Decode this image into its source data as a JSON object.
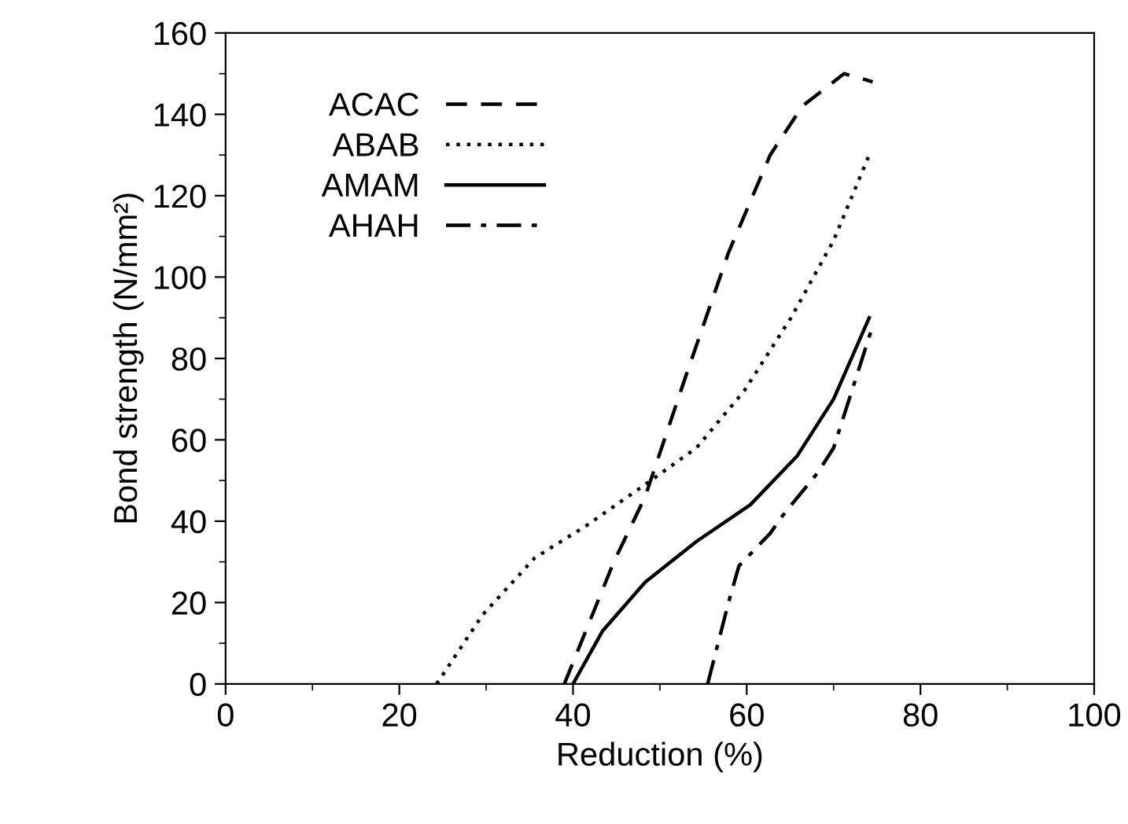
{
  "chart_data": {
    "type": "line",
    "xlabel": "Reduction (%)",
    "ylabel": "Bond strength (N/mm²)",
    "xlim": [
      0,
      100
    ],
    "xticks": [
      0,
      20,
      40,
      60,
      80,
      100
    ],
    "ylim": [
      0,
      160
    ],
    "yticks": [
      0,
      20,
      40,
      60,
      80,
      100,
      120,
      140,
      160
    ],
    "grid": false,
    "legend": "top left",
    "marker": "none",
    "series": [
      {
        "name": "ACAC",
        "color": "#000000",
        "line_style": "dashed",
        "x": [
          39,
          44.7,
          48.3,
          53.2,
          57.9,
          62.7,
          66.4,
          71.2,
          74.5
        ],
        "values": [
          0,
          30,
          46,
          77,
          106,
          130,
          142,
          150,
          148
        ]
      },
      {
        "name": "ABAB",
        "color": "#000000",
        "line_style": "dotted",
        "x": [
          24.3,
          29.6,
          35.6,
          41.6,
          48.3,
          54.2,
          59.7,
          65.1,
          70,
          74.1
        ],
        "values": [
          0,
          17,
          31,
          39,
          49,
          58,
          72,
          90,
          109,
          130
        ]
      },
      {
        "name": "AMAM",
        "color": "#000000",
        "line_style": "solid",
        "x": [
          40,
          43.4,
          48.3,
          54.2,
          60.4,
          65.8,
          70,
          74.1
        ],
        "values": [
          0,
          13,
          25,
          35,
          44,
          56,
          70,
          90
        ]
      },
      {
        "name": "AHAH",
        "color": "#000000",
        "line_style": "dashdot",
        "x": [
          55.5,
          57.9,
          59.1,
          62.7,
          64,
          68.2,
          70,
          74.5
        ],
        "values": [
          0,
          20,
          29,
          37,
          41,
          52,
          58,
          88
        ]
      }
    ]
  }
}
